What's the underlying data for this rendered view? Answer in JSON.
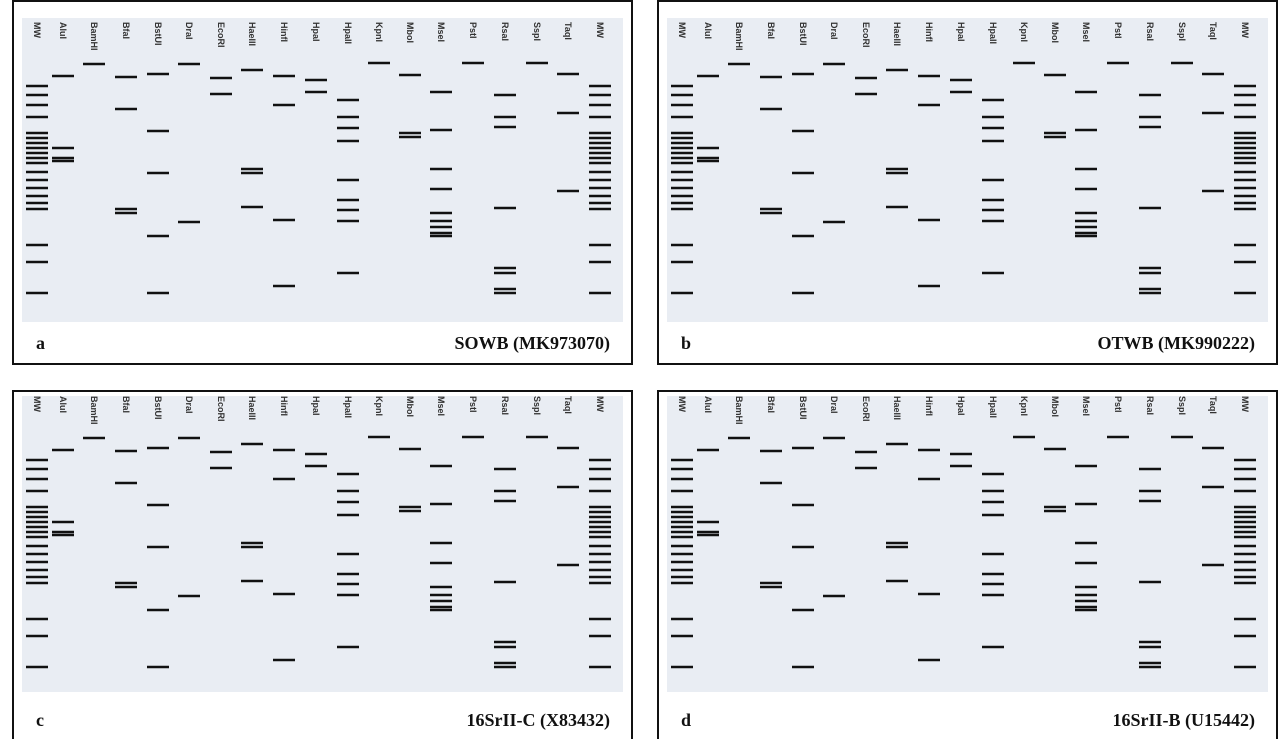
{
  "panels": [
    {
      "letter": "a",
      "caption": "SOWB (MK973070)",
      "lanes": [
        "MW",
        "AluI",
        "BamHI",
        "BfaI",
        "BstUI",
        "DraI",
        "EcoRI",
        "HaeIII",
        "HinfI",
        "HpaI",
        "HpaII",
        "KpnI",
        "MboI",
        "MseI",
        "PstI",
        "RsaI",
        "SspI",
        "TaqI",
        "MW"
      ]
    },
    {
      "letter": "b",
      "caption": "OTWB (MK990222)",
      "lanes": [
        "MW",
        "AluI",
        "BamHI",
        "BfaI",
        "BstUI",
        "DraI",
        "EcoRI",
        "HaeIII",
        "HinfI",
        "HpaI",
        "HpaII",
        "KpnI",
        "MboI",
        "MseI",
        "PstI",
        "RsaI",
        "SspI",
        "TaqI",
        "MW"
      ]
    },
    {
      "letter": "c",
      "caption": "16SrII-C (X83432)",
      "lanes": [
        "MW",
        "AluI",
        "BamHI",
        "BfaI",
        "BstUI",
        "DraI",
        "EcoRI",
        "HaeIII",
        "HinfI",
        "HpaI",
        "HpaII",
        "KpnI",
        "MboI",
        "MseI",
        "PstI",
        "RsaI",
        "SspI",
        "TaqI",
        "MW"
      ]
    },
    {
      "letter": "d",
      "caption": "16SrII-B (U15442)",
      "lanes": [
        "MW",
        "AluI",
        "BamHI",
        "BfaI",
        "BstUI",
        "DraI",
        "EcoRI",
        "HaeIII",
        "HinfI",
        "HpaI",
        "HpaII",
        "KpnI",
        "MboI",
        "MseI",
        "PstI",
        "RsaI",
        "SspI",
        "TaqI",
        "MW"
      ]
    }
  ]
}
